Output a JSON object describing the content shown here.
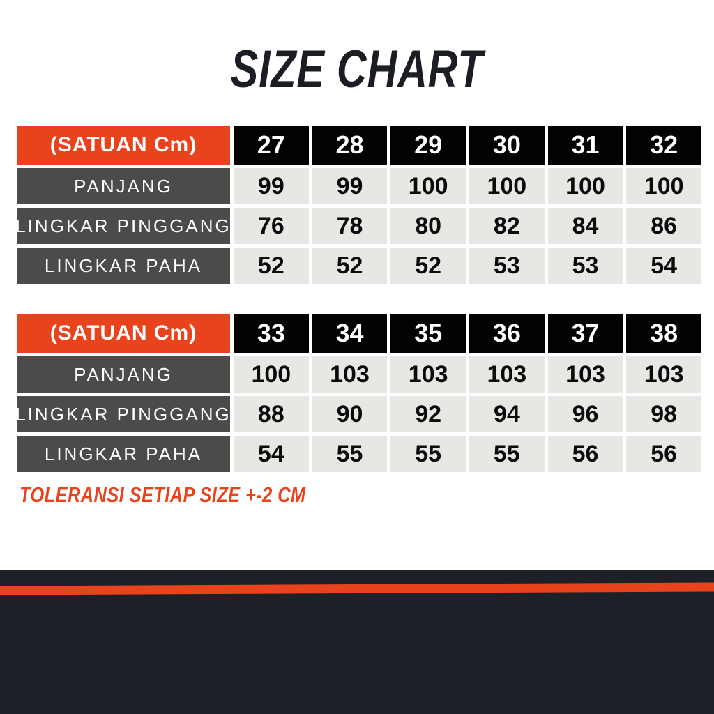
{
  "title": "SIZE CHART",
  "note": "TOLERANSI SETIAP SIZE +-2 CM",
  "colors": {
    "accent_orange": "#E8431C",
    "header_black": "#020202",
    "label_gray": "#4D4A4A",
    "cell_gray": "#E9E7E4",
    "title_dark": "#1A1E24",
    "footer_dark": "#1D2026"
  },
  "chart_data": [
    {
      "type": "table",
      "title": "(SATUAN Cm)",
      "columns": [
        "27",
        "28",
        "29",
        "30",
        "31",
        "32"
      ],
      "rows": [
        {
          "label": "PANJANG",
          "values": [
            99,
            99,
            100,
            100,
            100,
            100
          ]
        },
        {
          "label": "LINGKAR PINGGANG",
          "values": [
            76,
            78,
            80,
            82,
            84,
            86
          ]
        },
        {
          "label": "LINGKAR PAHA",
          "values": [
            52,
            52,
            52,
            53,
            53,
            54
          ]
        }
      ]
    },
    {
      "type": "table",
      "title": "(SATUAN Cm)",
      "columns": [
        "33",
        "34",
        "35",
        "36",
        "37",
        "38"
      ],
      "rows": [
        {
          "label": "PANJANG",
          "values": [
            100,
            103,
            103,
            103,
            103,
            103
          ]
        },
        {
          "label": "LINGKAR PINGGANG",
          "values": [
            88,
            90,
            92,
            94,
            96,
            98
          ]
        },
        {
          "label": "LINGKAR PAHA",
          "values": [
            54,
            55,
            55,
            55,
            56,
            56
          ]
        }
      ]
    }
  ]
}
